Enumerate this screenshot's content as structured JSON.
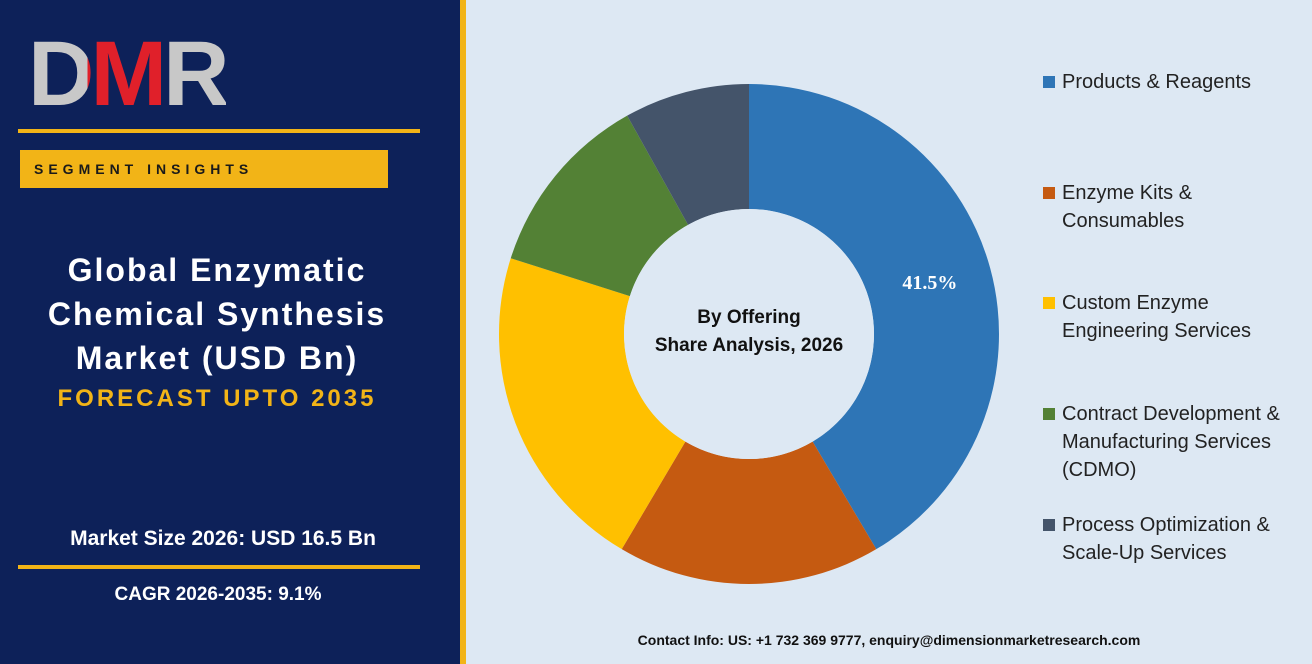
{
  "panel": {
    "logo": "DMR",
    "tag": "SEGMENT INSIGHTS",
    "title": "Global Enzymatic Chemical Synthesis Market (USD Bn)",
    "forecast": "FORECAST UPTO 2035",
    "market_size": "Market Size 2026: USD 16.5 Bn",
    "cagr": "CAGR 2026-2035: 9.1%"
  },
  "chart_data": {
    "type": "donut",
    "title": "By Offering",
    "subtitle": "Share Analysis, 2026",
    "categories": [
      "Products & Reagents",
      "Enzyme Kits & Consumables",
      "Custom Enzyme Engineering Services",
      "Contract Development & Manufacturing Services (CDMO)",
      "Process Optimization & Scale-Up Services"
    ],
    "values": [
      41.5,
      17,
      21.4,
      12,
      8.1
    ],
    "value_labels": [
      "41.5%",
      null,
      null,
      null,
      null
    ],
    "colors": [
      "#2e75b6",
      "#c55a11",
      "#ffc000",
      "#538135",
      "#44546a"
    ]
  },
  "footer": {
    "contact": "Contact Info: US: +1 732 369 9777, enquiry@dimensionmarketresearch.com"
  }
}
